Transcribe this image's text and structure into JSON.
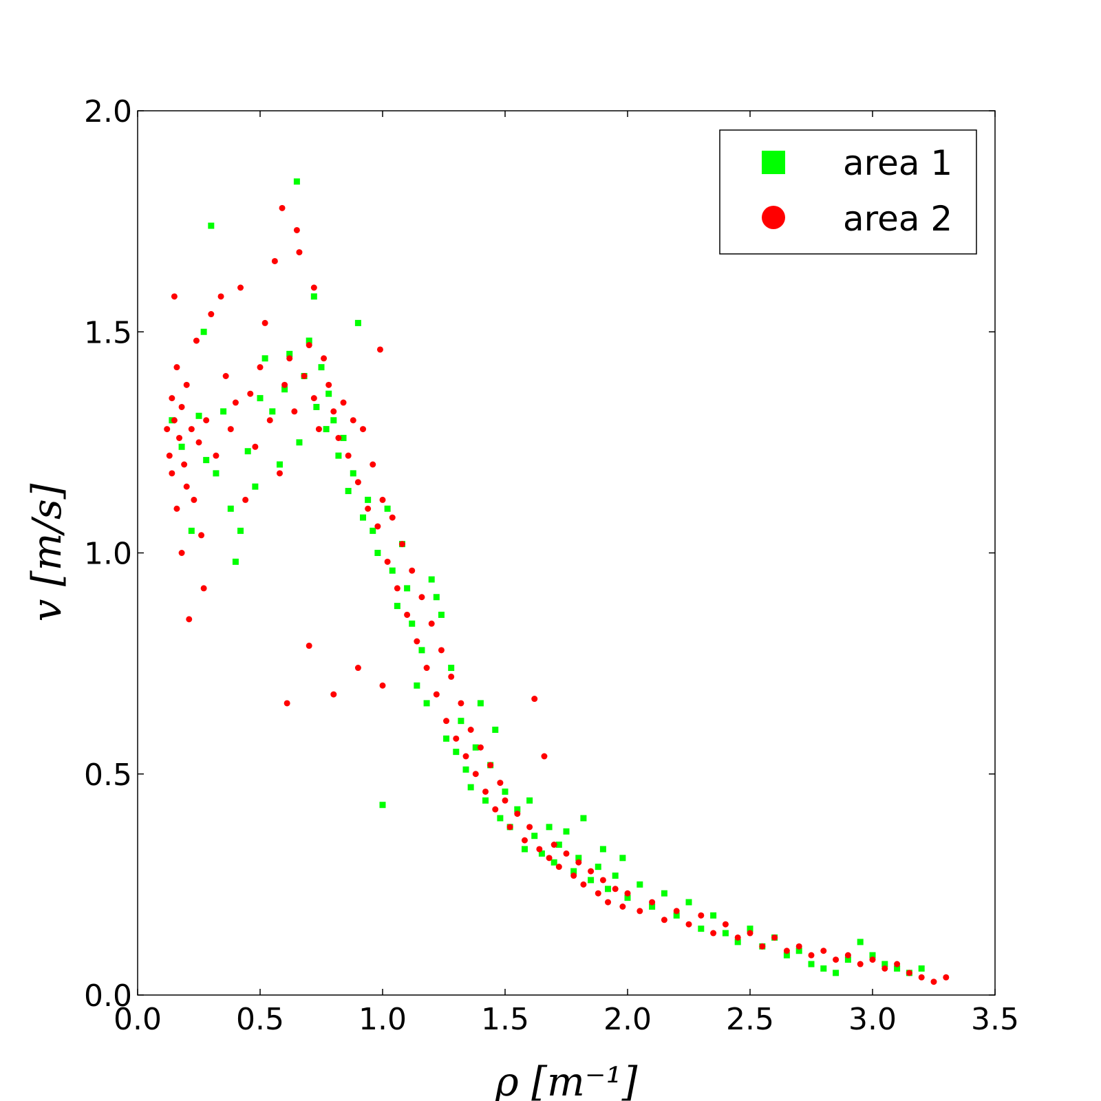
{
  "chart_data": {
    "type": "scatter",
    "title": "",
    "xlabel": "ρ [m⁻¹]",
    "ylabel": "v [m/s]",
    "xlim": [
      0.0,
      3.5
    ],
    "ylim": [
      0.0,
      2.0
    ],
    "xticks": [
      "0.0",
      "0.5",
      "1.0",
      "1.5",
      "2.0",
      "2.5",
      "3.0",
      "3.5"
    ],
    "yticks": [
      "0.0",
      "0.5",
      "1.0",
      "1.5",
      "2.0"
    ],
    "grid": false,
    "legend_position": "top-right",
    "series": [
      {
        "name": "area 1",
        "marker": "square",
        "color": "#00ff00",
        "points": [
          [
            0.14,
            1.3
          ],
          [
            0.18,
            1.24
          ],
          [
            0.22,
            1.05
          ],
          [
            0.25,
            1.31
          ],
          [
            0.27,
            1.5
          ],
          [
            0.28,
            1.21
          ],
          [
            0.3,
            1.74
          ],
          [
            0.32,
            1.18
          ],
          [
            0.35,
            1.32
          ],
          [
            0.38,
            1.1
          ],
          [
            0.4,
            0.98
          ],
          [
            0.42,
            1.05
          ],
          [
            0.45,
            1.23
          ],
          [
            0.48,
            1.15
          ],
          [
            0.5,
            1.35
          ],
          [
            0.52,
            1.44
          ],
          [
            0.55,
            1.32
          ],
          [
            0.58,
            1.2
          ],
          [
            0.6,
            1.37
          ],
          [
            0.62,
            1.45
          ],
          [
            0.65,
            1.84
          ],
          [
            0.66,
            1.25
          ],
          [
            0.68,
            1.4
          ],
          [
            0.7,
            1.48
          ],
          [
            0.72,
            1.58
          ],
          [
            0.73,
            1.33
          ],
          [
            0.75,
            1.42
          ],
          [
            0.77,
            1.28
          ],
          [
            0.78,
            1.36
          ],
          [
            0.8,
            1.3
          ],
          [
            0.82,
            1.22
          ],
          [
            0.84,
            1.26
          ],
          [
            0.86,
            1.14
          ],
          [
            0.88,
            1.18
          ],
          [
            0.9,
            1.52
          ],
          [
            0.92,
            1.08
          ],
          [
            0.94,
            1.12
          ],
          [
            0.96,
            1.05
          ],
          [
            0.98,
            1.0
          ],
          [
            1.0,
            0.43
          ],
          [
            1.02,
            1.1
          ],
          [
            1.04,
            0.96
          ],
          [
            1.06,
            0.88
          ],
          [
            1.08,
            1.02
          ],
          [
            1.1,
            0.92
          ],
          [
            1.12,
            0.84
          ],
          [
            1.14,
            0.7
          ],
          [
            1.16,
            0.78
          ],
          [
            1.18,
            0.66
          ],
          [
            1.2,
            0.94
          ],
          [
            1.22,
            0.9
          ],
          [
            1.24,
            0.86
          ],
          [
            1.26,
            0.58
          ],
          [
            1.28,
            0.74
          ],
          [
            1.3,
            0.55
          ],
          [
            1.32,
            0.62
          ],
          [
            1.34,
            0.51
          ],
          [
            1.36,
            0.47
          ],
          [
            1.38,
            0.56
          ],
          [
            1.4,
            0.66
          ],
          [
            1.42,
            0.44
          ],
          [
            1.44,
            0.52
          ],
          [
            1.46,
            0.6
          ],
          [
            1.48,
            0.4
          ],
          [
            1.5,
            0.46
          ],
          [
            1.52,
            0.38
          ],
          [
            1.55,
            0.42
          ],
          [
            1.58,
            0.33
          ],
          [
            1.6,
            0.44
          ],
          [
            1.62,
            0.36
          ],
          [
            1.65,
            0.32
          ],
          [
            1.68,
            0.38
          ],
          [
            1.7,
            0.3
          ],
          [
            1.72,
            0.34
          ],
          [
            1.75,
            0.37
          ],
          [
            1.78,
            0.28
          ],
          [
            1.8,
            0.31
          ],
          [
            1.82,
            0.4
          ],
          [
            1.85,
            0.26
          ],
          [
            1.88,
            0.29
          ],
          [
            1.9,
            0.33
          ],
          [
            1.92,
            0.24
          ],
          [
            1.95,
            0.27
          ],
          [
            1.98,
            0.31
          ],
          [
            2.0,
            0.22
          ],
          [
            2.05,
            0.25
          ],
          [
            2.1,
            0.2
          ],
          [
            2.15,
            0.23
          ],
          [
            2.2,
            0.18
          ],
          [
            2.25,
            0.21
          ],
          [
            2.3,
            0.15
          ],
          [
            2.35,
            0.18
          ],
          [
            2.4,
            0.14
          ],
          [
            2.45,
            0.12
          ],
          [
            2.5,
            0.15
          ],
          [
            2.55,
            0.11
          ],
          [
            2.6,
            0.13
          ],
          [
            2.65,
            0.09
          ],
          [
            2.7,
            0.1
          ],
          [
            2.75,
            0.07
          ],
          [
            2.8,
            0.06
          ],
          [
            2.85,
            0.05
          ],
          [
            2.9,
            0.08
          ],
          [
            2.95,
            0.12
          ],
          [
            3.0,
            0.09
          ],
          [
            3.05,
            0.07
          ],
          [
            3.1,
            0.06
          ],
          [
            3.15,
            0.05
          ],
          [
            3.2,
            0.06
          ]
        ]
      },
      {
        "name": "area 2",
        "marker": "circle",
        "color": "#ff0000",
        "points": [
          [
            0.12,
            1.28
          ],
          [
            0.13,
            1.22
          ],
          [
            0.14,
            1.35
          ],
          [
            0.14,
            1.18
          ],
          [
            0.15,
            1.58
          ],
          [
            0.15,
            1.3
          ],
          [
            0.16,
            1.1
          ],
          [
            0.16,
            1.42
          ],
          [
            0.17,
            1.26
          ],
          [
            0.18,
            1.0
          ],
          [
            0.18,
            1.33
          ],
          [
            0.19,
            1.2
          ],
          [
            0.2,
            1.15
          ],
          [
            0.2,
            1.38
          ],
          [
            0.21,
            0.85
          ],
          [
            0.22,
            1.28
          ],
          [
            0.23,
            1.12
          ],
          [
            0.24,
            1.48
          ],
          [
            0.25,
            1.25
          ],
          [
            0.26,
            1.04
          ],
          [
            0.27,
            0.92
          ],
          [
            0.28,
            1.3
          ],
          [
            0.3,
            1.54
          ],
          [
            0.32,
            1.22
          ],
          [
            0.34,
            1.58
          ],
          [
            0.36,
            1.4
          ],
          [
            0.38,
            1.28
          ],
          [
            0.4,
            1.34
          ],
          [
            0.42,
            1.6
          ],
          [
            0.44,
            1.12
          ],
          [
            0.46,
            1.36
          ],
          [
            0.48,
            1.24
          ],
          [
            0.5,
            1.42
          ],
          [
            0.52,
            1.52
          ],
          [
            0.54,
            1.3
          ],
          [
            0.56,
            1.66
          ],
          [
            0.58,
            1.18
          ],
          [
            0.59,
            1.78
          ],
          [
            0.6,
            1.38
          ],
          [
            0.61,
            0.66
          ],
          [
            0.62,
            1.44
          ],
          [
            0.64,
            1.32
          ],
          [
            0.65,
            1.73
          ],
          [
            0.66,
            1.68
          ],
          [
            0.68,
            1.4
          ],
          [
            0.7,
            1.47
          ],
          [
            0.7,
            0.79
          ],
          [
            0.72,
            1.6
          ],
          [
            0.72,
            1.35
          ],
          [
            0.74,
            1.28
          ],
          [
            0.76,
            1.44
          ],
          [
            0.78,
            1.38
          ],
          [
            0.8,
            1.32
          ],
          [
            0.8,
            0.68
          ],
          [
            0.82,
            1.26
          ],
          [
            0.84,
            1.34
          ],
          [
            0.86,
            1.22
          ],
          [
            0.88,
            1.3
          ],
          [
            0.9,
            1.16
          ],
          [
            0.9,
            0.74
          ],
          [
            0.92,
            1.28
          ],
          [
            0.94,
            1.1
          ],
          [
            0.96,
            1.2
          ],
          [
            0.98,
            1.06
          ],
          [
            0.99,
            1.46
          ],
          [
            1.0,
            1.12
          ],
          [
            1.0,
            0.7
          ],
          [
            1.02,
            0.98
          ],
          [
            1.04,
            1.08
          ],
          [
            1.06,
            0.92
          ],
          [
            1.08,
            1.02
          ],
          [
            1.1,
            0.86
          ],
          [
            1.12,
            0.96
          ],
          [
            1.14,
            0.8
          ],
          [
            1.16,
            0.9
          ],
          [
            1.18,
            0.74
          ],
          [
            1.2,
            0.84
          ],
          [
            1.22,
            0.68
          ],
          [
            1.24,
            0.78
          ],
          [
            1.26,
            0.62
          ],
          [
            1.28,
            0.72
          ],
          [
            1.3,
            0.58
          ],
          [
            1.32,
            0.66
          ],
          [
            1.34,
            0.54
          ],
          [
            1.36,
            0.6
          ],
          [
            1.38,
            0.5
          ],
          [
            1.4,
            0.56
          ],
          [
            1.42,
            0.46
          ],
          [
            1.44,
            0.52
          ],
          [
            1.46,
            0.42
          ],
          [
            1.48,
            0.48
          ],
          [
            1.5,
            0.44
          ],
          [
            1.52,
            0.38
          ],
          [
            1.55,
            0.41
          ],
          [
            1.58,
            0.35
          ],
          [
            1.6,
            0.38
          ],
          [
            1.62,
            0.67
          ],
          [
            1.64,
            0.33
          ],
          [
            1.66,
            0.54
          ],
          [
            1.68,
            0.31
          ],
          [
            1.7,
            0.34
          ],
          [
            1.72,
            0.29
          ],
          [
            1.75,
            0.32
          ],
          [
            1.78,
            0.27
          ],
          [
            1.8,
            0.3
          ],
          [
            1.82,
            0.25
          ],
          [
            1.85,
            0.28
          ],
          [
            1.88,
            0.23
          ],
          [
            1.9,
            0.26
          ],
          [
            1.92,
            0.21
          ],
          [
            1.95,
            0.24
          ],
          [
            1.98,
            0.2
          ],
          [
            2.0,
            0.23
          ],
          [
            2.05,
            0.19
          ],
          [
            2.1,
            0.21
          ],
          [
            2.15,
            0.17
          ],
          [
            2.2,
            0.19
          ],
          [
            2.25,
            0.16
          ],
          [
            2.3,
            0.18
          ],
          [
            2.35,
            0.14
          ],
          [
            2.4,
            0.16
          ],
          [
            2.45,
            0.13
          ],
          [
            2.5,
            0.14
          ],
          [
            2.55,
            0.11
          ],
          [
            2.6,
            0.13
          ],
          [
            2.65,
            0.1
          ],
          [
            2.7,
            0.11
          ],
          [
            2.75,
            0.09
          ],
          [
            2.8,
            0.1
          ],
          [
            2.85,
            0.08
          ],
          [
            2.9,
            0.09
          ],
          [
            2.95,
            0.07
          ],
          [
            3.0,
            0.08
          ],
          [
            3.05,
            0.06
          ],
          [
            3.1,
            0.07
          ],
          [
            3.15,
            0.05
          ],
          [
            3.2,
            0.04
          ],
          [
            3.25,
            0.03
          ],
          [
            3.3,
            0.04
          ]
        ]
      }
    ]
  }
}
